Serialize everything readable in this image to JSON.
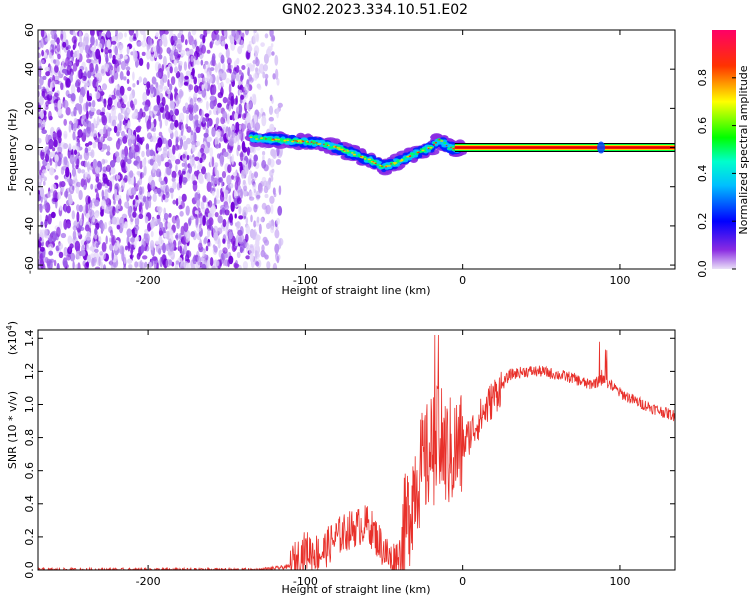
{
  "figure": {
    "title": "GN02.2023.334.10.51.E02"
  },
  "chart_data": [
    {
      "type": "heatmap",
      "title": "GN02.2023.334.10.51.E02",
      "xlabel": "Height of straight line (km)",
      "ylabel": "Frequency (Hz)",
      "xlim": [
        -270,
        135
      ],
      "ylim": [
        -62,
        60
      ],
      "xticks": [
        "-200",
        "-100",
        "0",
        "100"
      ],
      "yticks": [
        "-60",
        "-40",
        "-20",
        "0",
        "20",
        "40",
        "60"
      ],
      "colorbar": {
        "label": "Normalized spectral amplitude",
        "range": [
          0.0,
          1.0
        ],
        "ticks": [
          "0.0",
          "0.2",
          "0.4",
          "0.6",
          "0.8"
        ],
        "colormap": [
          "#ff00ff",
          "#ff0000",
          "#ffff00",
          "#00ff00",
          "#00ffff",
          "#0000ff",
          "#7f00ff"
        ]
      },
      "regions": [
        {
          "name": "noise",
          "x_range": [
            -270,
            -115
          ],
          "y_range": [
            -62,
            60
          ],
          "level": 0.15
        },
        {
          "name": "signal_track",
          "x_points": [
            -135,
            -120,
            -100,
            -90,
            -80,
            -70,
            -60,
            -50,
            -40,
            -30,
            -20,
            -15,
            -10,
            -5,
            0
          ],
          "y_points": [
            5,
            4,
            3,
            2,
            0,
            -3,
            -6,
            -10,
            -7,
            -3,
            0,
            4,
            1,
            -1,
            0
          ],
          "level": 0.4
        },
        {
          "name": "carrier_line",
          "x_range": [
            -5,
            135
          ],
          "y": 0,
          "level": 0.9
        }
      ],
      "grid": false
    },
    {
      "type": "line",
      "xlabel": "Height of straight line (km)",
      "ylabel": "SNR (10 * v/v)",
      "multiplier_label": "(x10",
      "multiplier_exp": "4",
      "multiplier_close": ")",
      "xlim": [
        -270,
        135
      ],
      "ylim": [
        0.0,
        1.45
      ],
      "xticks": [
        "-200",
        "-100",
        "0",
        "100"
      ],
      "yticks": [
        "0.0",
        "0.2",
        "0.4",
        "0.6",
        "0.8",
        "1.0",
        "1.2",
        "1.4"
      ],
      "series": [
        {
          "color": "#e8302a",
          "x": [
            -270,
            -200,
            -130,
            -110,
            -100,
            -90,
            -80,
            -70,
            -60,
            -50,
            -45,
            -40,
            -35,
            -30,
            -25,
            -20,
            -15,
            -10,
            -5,
            0,
            10,
            20,
            30,
            40,
            50,
            60,
            70,
            80,
            90,
            100,
            110,
            120,
            135
          ],
          "y": [
            0.0,
            0.0,
            0.0,
            0.02,
            0.12,
            0.1,
            0.2,
            0.25,
            0.28,
            0.12,
            0.05,
            0.1,
            0.3,
            0.55,
            0.62,
            0.72,
            0.78,
            0.7,
            0.72,
            0.75,
            0.9,
            1.05,
            1.18,
            1.2,
            1.2,
            1.18,
            1.16,
            1.12,
            1.15,
            1.07,
            1.02,
            0.98,
            0.93
          ]
        }
      ],
      "grid": false
    }
  ]
}
